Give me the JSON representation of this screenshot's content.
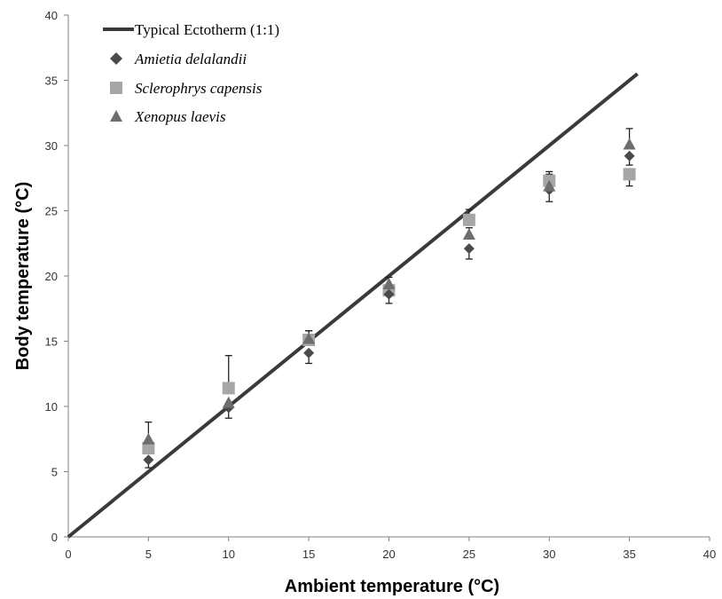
{
  "chart_data": {
    "type": "scatter",
    "xlabel": "Ambient temperature (°C)",
    "ylabel": "Body temperature (°C)",
    "xlim": [
      0,
      40
    ],
    "ylim": [
      0,
      40
    ],
    "xticks": [
      0,
      5,
      10,
      15,
      20,
      25,
      30,
      35,
      40
    ],
    "yticks": [
      0,
      5,
      10,
      15,
      20,
      25,
      30,
      35,
      40
    ],
    "grid": false,
    "legend_position": "top-left",
    "reference_line": {
      "name": "Typical Ectotherm (1:1)",
      "x": [
        0,
        35.5
      ],
      "y": [
        0,
        35.5
      ],
      "color": "#3a3a3a"
    },
    "series": [
      {
        "name": "Amietia delalandii",
        "marker": "diamond",
        "color": "#4a4a4a",
        "x": [
          5,
          10,
          15,
          20,
          25,
          30,
          35
        ],
        "y": [
          5.9,
          9.9,
          14.1,
          18.6,
          22.1,
          26.6,
          29.2
        ],
        "err_low": [
          0.6,
          0.8,
          0.8,
          0.7,
          0.8,
          0.9,
          0.7
        ],
        "err_high": [
          0,
          0,
          0,
          0,
          0,
          0,
          0
        ]
      },
      {
        "name": "Sclerophrys capensis",
        "marker": "square",
        "color": "#a6a6a6",
        "x": [
          5,
          10,
          15,
          20,
          25,
          30,
          35
        ],
        "y": [
          6.8,
          11.4,
          15.1,
          18.9,
          24.3,
          27.3,
          27.8
        ],
        "err_low": [
          0,
          0,
          0,
          0,
          0,
          0,
          0.9
        ],
        "err_high": [
          0,
          2.5,
          0.7,
          0,
          0.8,
          0.7,
          0
        ]
      },
      {
        "name": "Xenopus laevis",
        "marker": "triangle",
        "color": "#6e6e6e",
        "x": [
          5,
          10,
          15,
          20,
          25,
          30,
          35
        ],
        "y": [
          7.5,
          10.3,
          15.2,
          19.4,
          23.2,
          26.9,
          30.1
        ],
        "err_low": [
          0,
          0,
          0,
          0,
          0,
          0,
          0
        ],
        "err_high": [
          1.3,
          0,
          0.6,
          0.5,
          0.5,
          0.9,
          1.2
        ]
      }
    ]
  }
}
